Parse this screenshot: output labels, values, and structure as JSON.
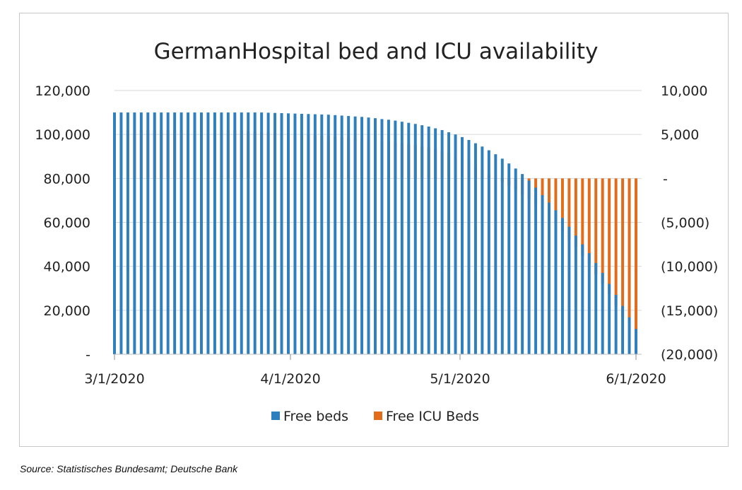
{
  "chart_data": {
    "type": "bar",
    "title": "GermanHospital bed and ICU availability",
    "x_start": "3/1/2020",
    "x_end": "6/1/2020",
    "x_ticks": [
      "3/1/2020",
      "4/1/2020",
      "5/1/2020",
      "6/1/2020"
    ],
    "ylim_left": [
      0,
      120000
    ],
    "ylim_right": [
      -20000,
      10000
    ],
    "y_ticks_left": [
      "-",
      "20,000",
      "40,000",
      "60,000",
      "80,000",
      "100,000",
      "120,000"
    ],
    "y_ticks_right": [
      "(20,000)",
      "(15,000)",
      "(10,000)",
      "(5,000)",
      "-",
      "5,000",
      "10,000"
    ],
    "grid": true,
    "legend_position": "bottom",
    "colors": {
      "free_beds": "#2e7fbd",
      "free_icu": "#e36c1b",
      "grid": "#d9d9d9"
    },
    "series": [
      {
        "name": "Free beds",
        "axis": "left",
        "values": [
          110000,
          110000,
          110000,
          110000,
          110000,
          110000,
          110000,
          110000,
          110000,
          110000,
          110000,
          110000,
          110000,
          110000,
          110000,
          110000,
          110000,
          110000,
          110000,
          110000,
          110000,
          110000,
          110000,
          109900,
          109800,
          109700,
          109600,
          109500,
          109400,
          109300,
          109200,
          109100,
          109000,
          108800,
          108600,
          108400,
          108200,
          108000,
          107700,
          107400,
          107000,
          106700,
          106300,
          105800,
          105300,
          104800,
          104200,
          103600,
          102800,
          102000,
          101000,
          100000,
          98800,
          97500,
          96000,
          94500,
          92800,
          91000,
          89000,
          86800,
          84500,
          82000,
          79000,
          75800,
          72400,
          69000,
          65500,
          62000,
          58000,
          54000,
          50000,
          46000,
          41500,
          37000,
          32000,
          27000,
          22000,
          16800,
          11500
        ]
      },
      {
        "name": "Free ICU Beds",
        "axis": "right",
        "values": [
          5500,
          5500,
          5500,
          5500,
          5500,
          5500,
          5500,
          5500,
          5500,
          5500,
          5500,
          5500,
          5500,
          5500,
          5500,
          5500,
          5500,
          5500,
          5500,
          5450,
          5400,
          5350,
          5300,
          5250,
          5200,
          5150,
          5100,
          5050,
          5000,
          4950,
          4900,
          4850,
          4800,
          4750,
          4700,
          4650,
          4600,
          4550,
          4500,
          4400,
          4300,
          4200,
          4100,
          4000,
          3900,
          3800,
          3650,
          3500,
          3300,
          3100,
          2900,
          2600,
          2300,
          1900,
          1500,
          1000,
          500,
          0,
          -400,
          -800,
          -1300,
          -1800,
          -2400,
          -3000,
          -3700,
          -4400,
          -5200,
          -6000,
          -6900,
          -7800,
          -8800,
          -9800,
          -10900,
          -12000,
          -13200,
          -14500,
          -15800,
          -16500,
          -17500
        ]
      }
    ]
  },
  "source_note": "Source: Statistisches Bundesamt; Deutsche Bank"
}
